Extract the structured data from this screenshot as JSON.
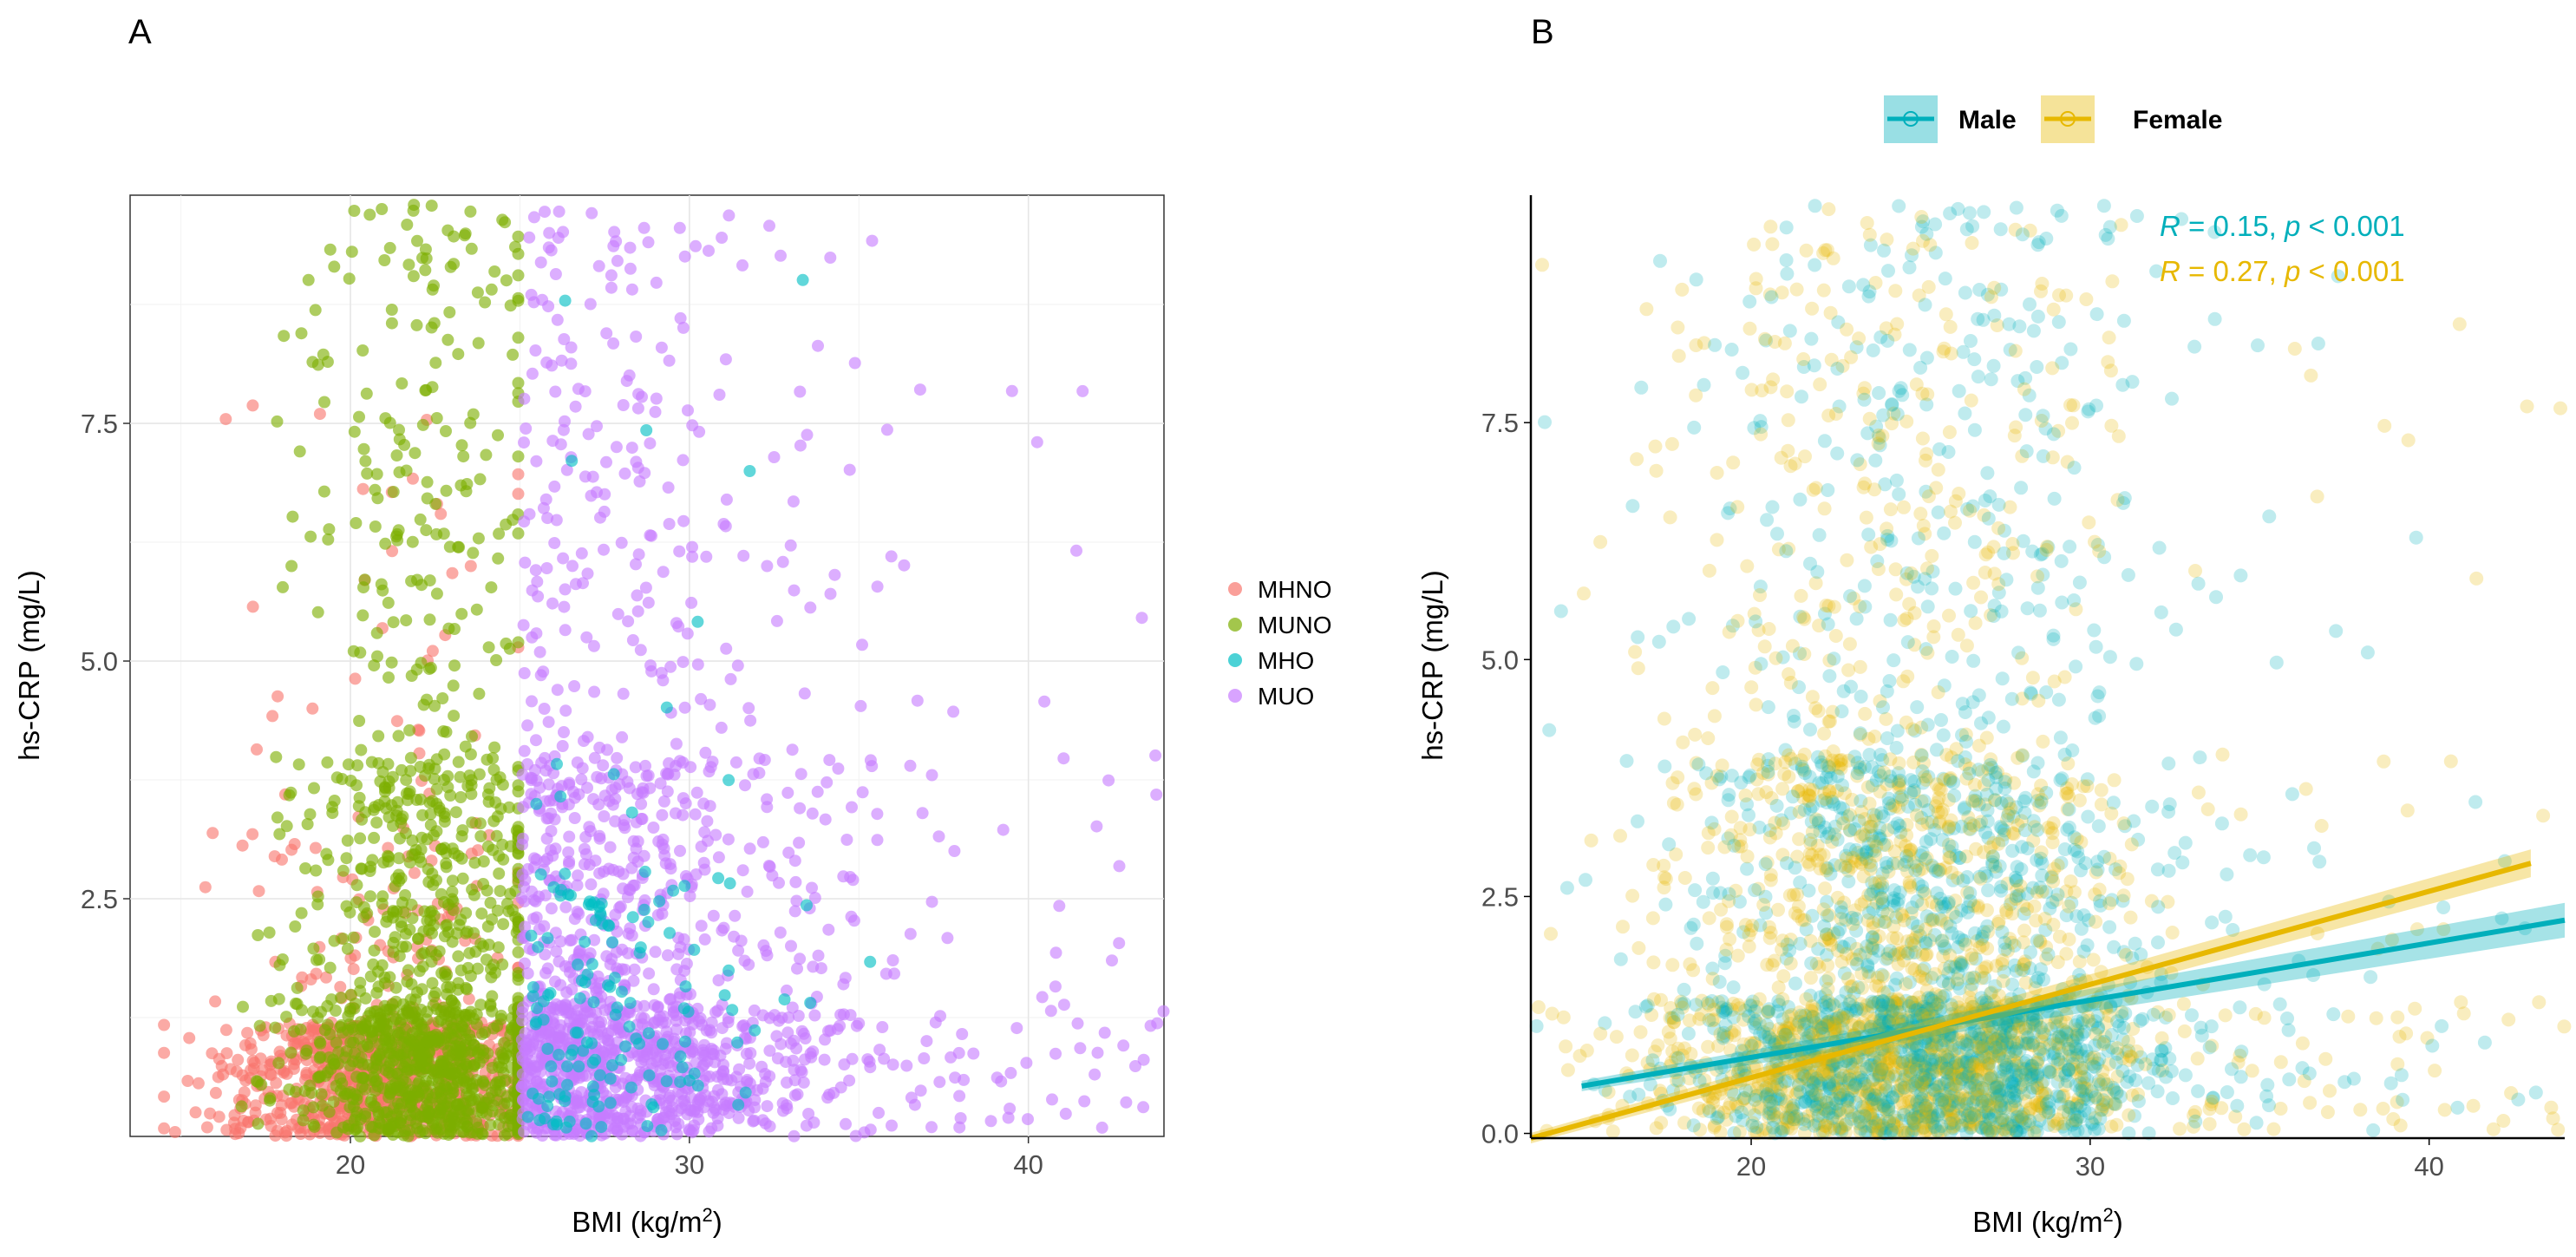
{
  "chart_data": [
    {
      "panel": "A",
      "type": "scatter",
      "xlabel": "BMI (kg/m",
      "xlabel_sup": "2",
      "xlabel_end": ")",
      "ylabel": "hs-CRP (mg/L)",
      "xlim": [
        13.5,
        44
      ],
      "ylim": [
        0,
        9.9
      ],
      "xticks": [
        20,
        30,
        40
      ],
      "yticks": [
        2.5,
        5.0,
        7.5
      ],
      "ytick_labels": [
        "2.5",
        "5.0",
        "7.5"
      ],
      "grid": true,
      "legend_position": "right",
      "series": [
        {
          "name": "MHNO",
          "color": "#F8766D",
          "bmi_range": [
            15,
            25
          ],
          "summary": "normal-weight, concentrated at BMI 17-25, hs-CRP mostly below 2.5"
        },
        {
          "name": "MUNO",
          "color": "#7CAE00",
          "bmi_range": [
            15,
            25
          ],
          "summary": "normal-weight, BMI 16-25, hs-CRP spread up to ~9.8"
        },
        {
          "name": "MHO",
          "color": "#00BFC4",
          "bmi_range": [
            25,
            38
          ],
          "summary": "obese, sparse, hs-CRP mostly below 5"
        },
        {
          "name": "MUO",
          "color": "#C77CFF",
          "bmi_range": [
            25,
            44
          ],
          "summary": "obese, BMI 25-44, hs-CRP spread up to ~9.8"
        }
      ]
    },
    {
      "panel": "B",
      "type": "scatter",
      "xlabel": "BMI (kg/m",
      "xlabel_sup": "2",
      "xlabel_end": ")",
      "ylabel": "hs-CRP (mg/L)",
      "xlim": [
        13.5,
        44
      ],
      "ylim": [
        -0.05,
        9.9
      ],
      "xticks": [
        20,
        30,
        40
      ],
      "yticks": [
        0.0,
        2.5,
        5.0,
        7.5
      ],
      "ytick_labels": [
        "0.0",
        "2.5",
        "5.0",
        "7.5"
      ],
      "grid": false,
      "legend_position": "top",
      "series": [
        {
          "name": "Male",
          "color": "#00AFBB",
          "regression": {
            "x": [
              15,
              44
            ],
            "y": [
              0.5,
              2.25
            ]
          },
          "R": "0.15",
          "p": "0.001"
        },
        {
          "name": "Female",
          "color": "#E7B800",
          "regression": {
            "x": [
              13.5,
              43
            ],
            "y": [
              -0.05,
              2.85
            ]
          },
          "R": "0.27",
          "p": "0.001"
        }
      ]
    }
  ]
}
